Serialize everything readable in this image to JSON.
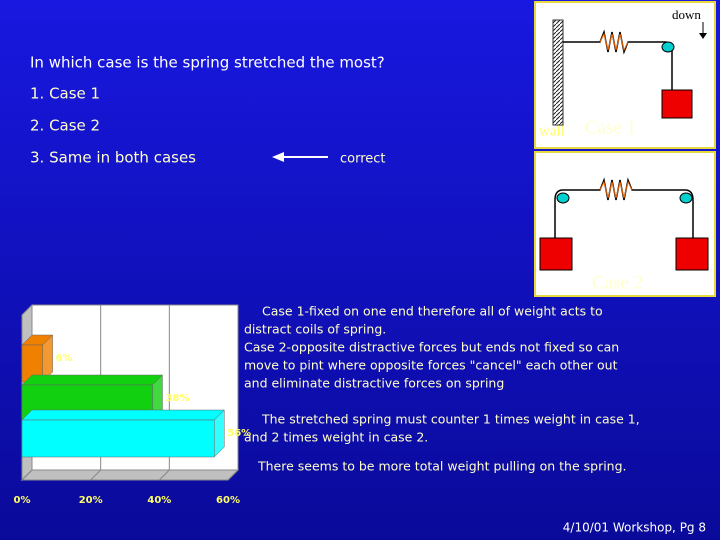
{
  "question": "In which case is the spring stretched the most?",
  "options": [
    "1.  Case 1",
    "2.  Case 2",
    "3.  Same in both cases"
  ],
  "correct_label": "correct",
  "diagram": {
    "case1": {
      "down": "down",
      "wall": "wall",
      "label": "Case 1"
    },
    "case2": {
      "label": "Case 2"
    }
  },
  "notes": [
    [
      "Case 1-fixed on one end therefore all of weight acts to",
      "distract coils of spring.",
      "Case 2-opposite distractive forces but ends not fixed so can",
      "move to pint where opposite forces \"cancel\" each other out",
      "and eliminate distractive forces on spring"
    ],
    [
      "The stretched spring must counter 1 times weight in case 1,",
      "and 2 times weight in case 2."
    ],
    [
      "There seems to be more total weight pulling on the spring."
    ]
  ],
  "footer": "4/10/01 Workshop, Pg 8",
  "chart_data": {
    "type": "bar3d",
    "orientation": "horizontal",
    "categories": [
      null,
      null,
      null
    ],
    "values": [
      6,
      38,
      56
    ],
    "value_labels": [
      "6%",
      "38%",
      "56%"
    ],
    "colors": [
      "#f08000",
      "#10d010",
      "#00ffff"
    ],
    "xlim": [
      0,
      60
    ],
    "xticks": [
      {
        "value": 0,
        "label": "0%"
      },
      {
        "value": 20,
        "label": "20%"
      },
      {
        "value": 40,
        "label": "40%"
      },
      {
        "value": 60,
        "label": "60%"
      }
    ],
    "grid": true
  }
}
